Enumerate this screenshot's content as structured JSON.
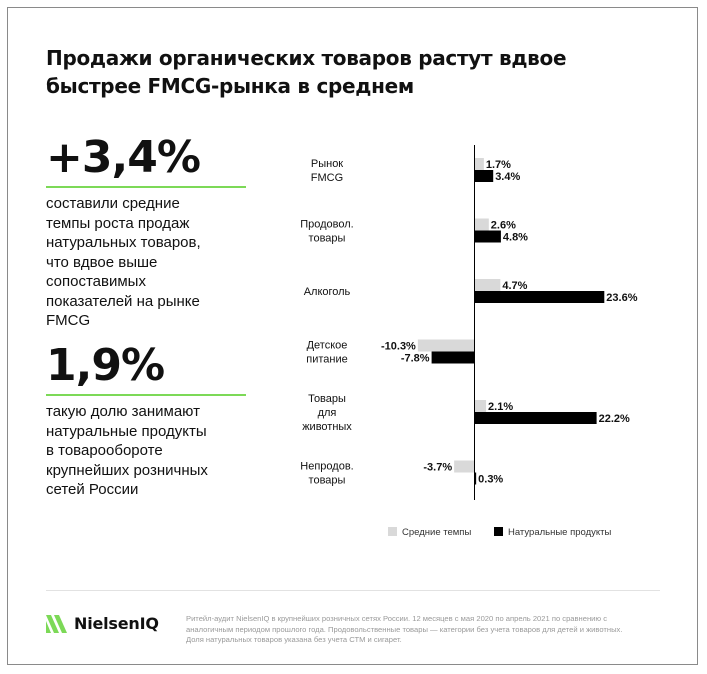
{
  "title": {
    "line1": "Продажи органических товаров растут вдвое",
    "line2": "быстрее FMCG-рынка в среднем"
  },
  "stats": [
    {
      "value": "+3,4%",
      "lines": [
        "составили средние",
        "темпы роста продаж",
        "натуральных товаров,",
        "что вдвое выше",
        "сопоставимых",
        "показателей на рынке",
        "FMCG"
      ]
    },
    {
      "value": "1,9%",
      "lines": [
        "такую долю занимают",
        "натуральные продукты",
        "в товарообороте",
        "крупнейших розничных",
        "сетей России"
      ]
    }
  ],
  "chart_data": {
    "type": "bar",
    "orientation": "horizontal",
    "categories": [
      [
        "Рынок",
        "FMCG"
      ],
      [
        "Продовол.",
        "товары"
      ],
      [
        "Алкоголь"
      ],
      [
        "Детское",
        "питание"
      ],
      [
        "Товары",
        "для",
        "животных"
      ],
      [
        "Непродов.",
        "товары"
      ]
    ],
    "series": [
      {
        "name": "Средние темпы",
        "color": "#d9d9d9",
        "values": [
          1.7,
          2.6,
          4.7,
          -10.3,
          2.1,
          -3.7
        ],
        "labels": [
          "1.7%",
          "2.6%",
          "4.7%",
          "-10.3%",
          "2.1%",
          "-3.7%"
        ]
      },
      {
        "name": "Натуральные продукты",
        "color": "#000000",
        "values": [
          3.4,
          4.8,
          23.6,
          -7.8,
          22.2,
          0.3
        ],
        "labels": [
          "3.4%",
          "4.8%",
          "23.6%",
          "-7.8%",
          "22.2%",
          "0.3%"
        ]
      }
    ],
    "xlim": [
      -10.3,
      23.6
    ],
    "legend": "bottom",
    "axis_color": "#000000"
  },
  "brand": {
    "name": "NielsenIQ",
    "accent": "#7cd957"
  },
  "footnote": [
    "Ритейл-аудит NielsenIQ в крупнейших розничных сетях России. 12 месяцев с мая 2020 по апрель 2021 по сравнению с",
    "аналогичным периодом прошлого года. Продовольственные товары — категории без учета товаров для детей и животных.",
    "Доля натуральных товаров указана без учета СТМ и сигарет."
  ]
}
